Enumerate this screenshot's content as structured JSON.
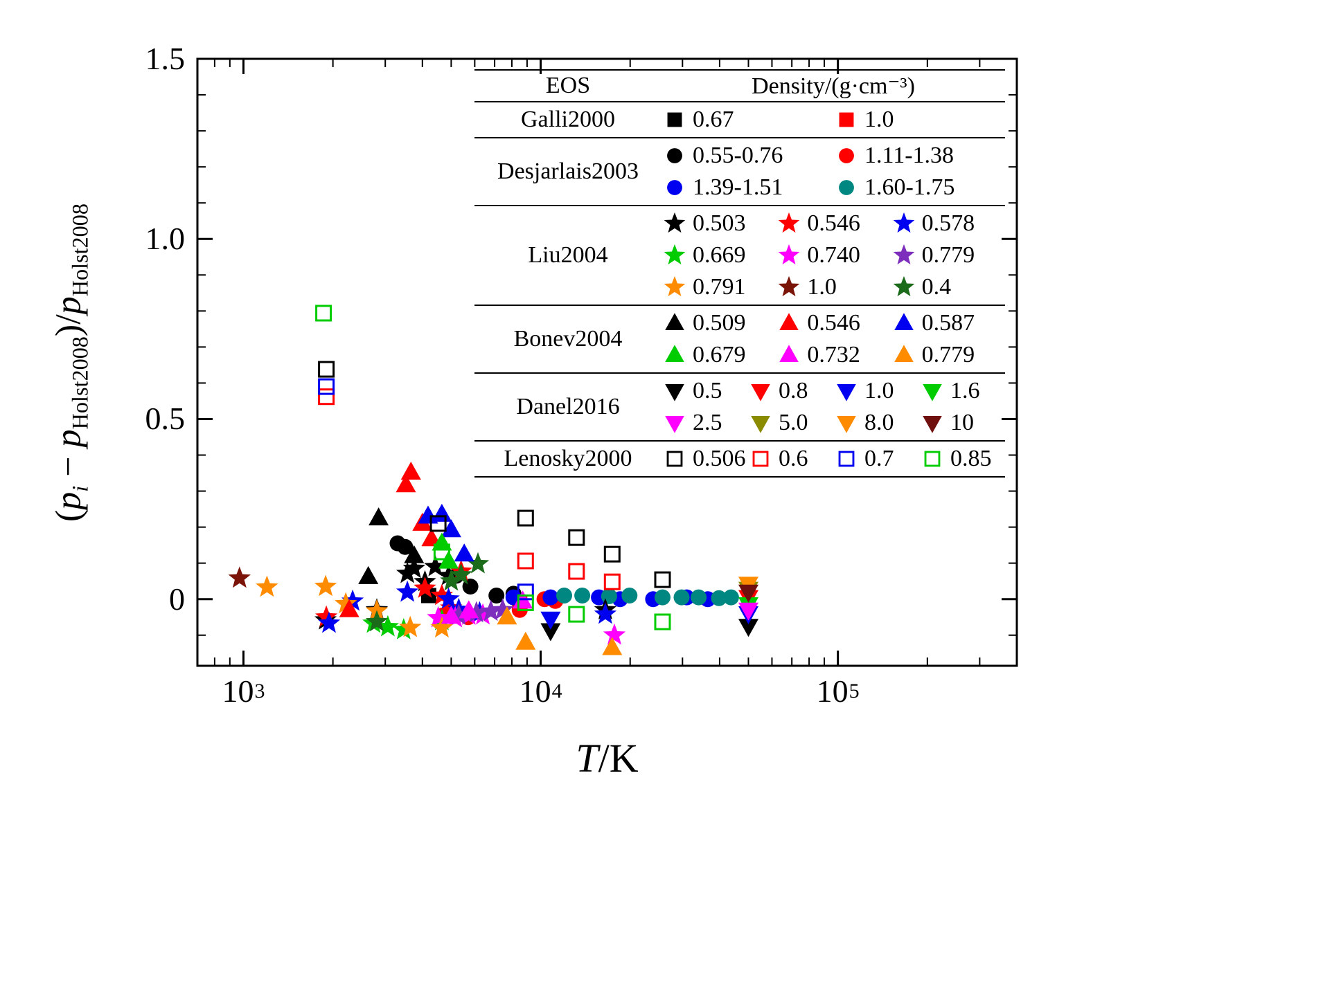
{
  "axes": {
    "x": {
      "label_segments": [
        {
          "t": "T",
          "i": 1
        },
        {
          "t": "/K",
          "i": 0
        }
      ],
      "ticks": [
        {
          "base": "10",
          "exp": "3",
          "value": 1000
        },
        {
          "base": "10",
          "exp": "4",
          "value": 10000
        },
        {
          "base": "10",
          "exp": "5",
          "value": 100000
        }
      ]
    },
    "y": {
      "label_segments": [
        {
          "t": "(",
          "i": 0
        },
        {
          "t": "p",
          "i": 1
        },
        {
          "t": "i",
          "i": 1,
          "sub": 1
        },
        {
          "t": " − ",
          "i": 0
        },
        {
          "t": "p",
          "i": 1
        },
        {
          "t": "Holst2008",
          "i": 0,
          "sub": 1
        },
        {
          "t": ")/",
          "i": 0
        },
        {
          "t": "p",
          "i": 1
        },
        {
          "t": "Holst2008",
          "i": 0,
          "sub": 1
        }
      ],
      "ticks": [
        {
          "label": "0",
          "value": 0
        },
        {
          "label": "0.5",
          "value": 0.5
        },
        {
          "label": "1.0",
          "value": 1.0
        },
        {
          "label": "1.5",
          "value": 1.5
        }
      ]
    }
  },
  "legend": {
    "header": {
      "eos": "EOS",
      "density": "Density/(g·cm⁻³)"
    },
    "groups": [
      {
        "name": "Galli2000",
        "cols": 2,
        "entries": [
          {
            "marker": "square",
            "color": "#000000",
            "label": "0.67"
          },
          {
            "marker": "square",
            "color": "#fe0000",
            "label": "1.0"
          }
        ]
      },
      {
        "name": "Desjarlais2003",
        "cols": 2,
        "entries": [
          {
            "marker": "circle",
            "color": "#000000",
            "label": "0.55-0.76"
          },
          {
            "marker": "circle",
            "color": "#fe0000",
            "label": "1.11-1.38"
          },
          {
            "marker": "circle",
            "color": "#0000f0",
            "label": "1.39-1.51"
          },
          {
            "marker": "circle",
            "color": "#008782",
            "label": "1.60-1.75"
          }
        ]
      },
      {
        "name": "Liu2004",
        "cols": 3,
        "entries": [
          {
            "marker": "star",
            "color": "#000000",
            "label": "0.503"
          },
          {
            "marker": "star",
            "color": "#fe0000",
            "label": "0.546"
          },
          {
            "marker": "star",
            "color": "#0000f0",
            "label": "0.578"
          },
          {
            "marker": "star",
            "color": "#00cc00",
            "label": "0.669"
          },
          {
            "marker": "star",
            "color": "#ff00ff",
            "label": "0.740"
          },
          {
            "marker": "star",
            "color": "#7d2ebd",
            "label": "0.779"
          },
          {
            "marker": "star",
            "color": "#ff8c00",
            "label": "0.791"
          },
          {
            "marker": "star",
            "color": "#7b1408",
            "label": "1.0"
          },
          {
            "marker": "star",
            "color": "#1b6b1b",
            "label": "0.4"
          }
        ]
      },
      {
        "name": "Bonev2004",
        "cols": 3,
        "entries": [
          {
            "marker": "triangle-up",
            "color": "#000000",
            "label": "0.509"
          },
          {
            "marker": "triangle-up",
            "color": "#fe0000",
            "label": "0.546"
          },
          {
            "marker": "triangle-up",
            "color": "#0000f0",
            "label": "0.587"
          },
          {
            "marker": "triangle-up",
            "color": "#00cc00",
            "label": "0.679"
          },
          {
            "marker": "triangle-up",
            "color": "#ff00ff",
            "label": "0.732"
          },
          {
            "marker": "triangle-up",
            "color": "#ff8c00",
            "label": "0.779"
          }
        ]
      },
      {
        "name": "Danel2016",
        "cols": 4,
        "entries": [
          {
            "marker": "triangle-down",
            "color": "#000000",
            "label": "0.5"
          },
          {
            "marker": "triangle-down",
            "color": "#fe0000",
            "label": "0.8"
          },
          {
            "marker": "triangle-down",
            "color": "#0000f0",
            "label": "1.0"
          },
          {
            "marker": "triangle-down",
            "color": "#00cc00",
            "label": "1.6"
          },
          {
            "marker": "triangle-down",
            "color": "#ff00ff",
            "label": "2.5"
          },
          {
            "marker": "triangle-down",
            "color": "#8b8b00",
            "label": "5.0"
          },
          {
            "marker": "triangle-down",
            "color": "#ff8c00",
            "label": "8.0"
          },
          {
            "marker": "triangle-down",
            "color": "#70100e",
            "label": "10"
          }
        ]
      },
      {
        "name": "Lenosky2000",
        "cols": 4,
        "entries": [
          {
            "marker": "square-open",
            "color": "#000000",
            "label": "0.506"
          },
          {
            "marker": "square-open",
            "color": "#fe0000",
            "label": "0.6"
          },
          {
            "marker": "square-open",
            "color": "#0000f0",
            "label": "0.7"
          },
          {
            "marker": "square-open",
            "color": "#00cc00",
            "label": "0.85"
          }
        ]
      }
    ]
  },
  "chart_data": {
    "type": "scatter",
    "xscale": "log",
    "xlabel": "T/K",
    "ylabel": "(p_i − p_Holst2008)/p_Holst2008",
    "xlim": [
      700,
      400000
    ],
    "ylim": [
      -0.185,
      1.5
    ],
    "grid": false,
    "legend_position": "upper right inside",
    "series": [
      {
        "eos": "Galli2000",
        "density": "0.67",
        "marker": "square",
        "color": "#000000",
        "points": [
          [
            4200,
            0.01
          ]
        ]
      },
      {
        "eos": "Galli2000",
        "density": "1.0",
        "marker": "square",
        "color": "#fe0000",
        "points": [
          [
            8500,
            -0.01
          ]
        ]
      },
      {
        "eos": "Desjarlais2003",
        "density": "0.55-0.76",
        "marker": "circle",
        "color": "#000000",
        "points": [
          [
            3300,
            0.155
          ],
          [
            3500,
            0.145
          ],
          [
            5200,
            0.065
          ],
          [
            5800,
            0.035
          ],
          [
            7100,
            0.01
          ],
          [
            8100,
            0.015
          ]
        ]
      },
      {
        "eos": "Desjarlais2003",
        "density": "1.11-1.38",
        "marker": "circle",
        "color": "#fe0000",
        "points": [
          [
            4700,
            -0.045
          ],
          [
            5700,
            -0.05
          ],
          [
            8500,
            -0.03
          ],
          [
            10300,
            0.0
          ],
          [
            11200,
            -0.005
          ]
        ]
      },
      {
        "eos": "Desjarlais2003",
        "density": "1.39-1.51",
        "marker": "circle",
        "color": "#0000f0",
        "points": [
          [
            8100,
            0.005
          ],
          [
            10800,
            0.005
          ],
          [
            15700,
            0.005
          ],
          [
            18500,
            0.0
          ],
          [
            23900,
            0.0
          ],
          [
            31000,
            0.005
          ],
          [
            36500,
            0.0
          ]
        ]
      },
      {
        "eos": "Desjarlais2003",
        "density": "1.60-1.75",
        "marker": "circle",
        "color": "#008782",
        "points": [
          [
            12000,
            0.01
          ],
          [
            13800,
            0.01
          ],
          [
            17000,
            0.008
          ],
          [
            19900,
            0.01
          ],
          [
            25700,
            0.005
          ],
          [
            29800,
            0.005
          ],
          [
            34000,
            0.005
          ],
          [
            39800,
            0.003
          ],
          [
            43700,
            0.005
          ]
        ]
      },
      {
        "eos": "Liu2004",
        "density": "0.503",
        "marker": "star",
        "color": "#000000",
        "points": [
          [
            1890,
            -0.058
          ],
          [
            2810,
            -0.03
          ],
          [
            3560,
            0.071
          ],
          [
            3750,
            0.085
          ],
          [
            4080,
            0.048
          ],
          [
            4420,
            0.09
          ],
          [
            4900,
            0.065
          ],
          [
            16500,
            -0.03
          ]
        ]
      },
      {
        "eos": "Liu2004",
        "density": "0.546",
        "marker": "star",
        "color": "#fe0000",
        "points": [
          [
            1900,
            -0.05
          ],
          [
            4080,
            0.03
          ],
          [
            4650,
            0.01
          ],
          [
            5000,
            -0.025
          ],
          [
            5400,
            0.077
          ]
        ]
      },
      {
        "eos": "Liu2004",
        "density": "0.578",
        "marker": "star",
        "color": "#0000f0",
        "points": [
          [
            1940,
            -0.067
          ],
          [
            2330,
            -0.006
          ],
          [
            3560,
            0.019
          ],
          [
            4900,
            0.0
          ],
          [
            5300,
            -0.029
          ],
          [
            6230,
            -0.038
          ],
          [
            16500,
            -0.042
          ]
        ]
      },
      {
        "eos": "Liu2004",
        "density": "0.669",
        "marker": "star",
        "color": "#00cc00",
        "points": [
          [
            2740,
            -0.067
          ],
          [
            3060,
            -0.077
          ],
          [
            3460,
            -0.085
          ],
          [
            4650,
            -0.06
          ]
        ]
      },
      {
        "eos": "Liu2004",
        "density": "0.740",
        "marker": "star",
        "color": "#ff00ff",
        "points": [
          [
            4520,
            -0.052
          ],
          [
            5160,
            -0.052
          ],
          [
            5730,
            -0.045
          ],
          [
            6390,
            -0.044
          ],
          [
            17700,
            -0.1
          ]
        ]
      },
      {
        "eos": "Liu2004",
        "density": "0.779",
        "marker": "star",
        "color": "#7d2ebd",
        "points": [
          [
            5300,
            -0.045
          ],
          [
            6080,
            -0.038
          ],
          [
            6800,
            -0.034
          ],
          [
            7450,
            -0.03
          ]
        ]
      },
      {
        "eos": "Liu2004",
        "density": "0.791",
        "marker": "star",
        "color": "#ff8c00",
        "points": [
          [
            1200,
            0.033
          ],
          [
            1890,
            0.035
          ],
          [
            2210,
            -0.013
          ],
          [
            2810,
            -0.033
          ],
          [
            3640,
            -0.079
          ],
          [
            4650,
            -0.08
          ]
        ]
      },
      {
        "eos": "Liu2004",
        "density": "1.0",
        "marker": "star",
        "color": "#7b1408",
        "points": [
          [
            970,
            0.058
          ]
        ]
      },
      {
        "eos": "Liu2004",
        "density": "0.4",
        "marker": "star",
        "color": "#1b6b1b",
        "points": [
          [
            2810,
            -0.063
          ],
          [
            5000,
            0.05
          ],
          [
            5400,
            0.067
          ],
          [
            6150,
            0.098
          ]
        ]
      },
      {
        "eos": "Bonev2004",
        "density": "0.509",
        "marker": "triangle-up",
        "color": "#000000",
        "points": [
          [
            2630,
            0.062
          ],
          [
            2850,
            0.225
          ],
          [
            3750,
            0.12
          ]
        ]
      },
      {
        "eos": "Bonev2004",
        "density": "0.546",
        "marker": "triangle-up",
        "color": "#fe0000",
        "points": [
          [
            2270,
            -0.03
          ],
          [
            3520,
            0.317
          ],
          [
            3660,
            0.352
          ],
          [
            4000,
            0.21
          ],
          [
            4290,
            0.167
          ]
        ]
      },
      {
        "eos": "Bonev2004",
        "density": "0.587",
        "marker": "triangle-up",
        "color": "#0000f0",
        "points": [
          [
            4180,
            0.23
          ],
          [
            4650,
            0.235
          ],
          [
            5000,
            0.192
          ],
          [
            5530,
            0.125
          ]
        ]
      },
      {
        "eos": "Bonev2004",
        "density": "0.679",
        "marker": "triangle-up",
        "color": "#00cc00",
        "points": [
          [
            4650,
            0.155
          ],
          [
            4900,
            0.105
          ]
        ]
      },
      {
        "eos": "Bonev2004",
        "density": "0.732",
        "marker": "triangle-up",
        "color": "#ff00ff",
        "points": [
          [
            5000,
            -0.048
          ],
          [
            5730,
            -0.033
          ],
          [
            8700,
            -0.006
          ]
        ]
      },
      {
        "eos": "Bonev2004",
        "density": "0.779",
        "marker": "triangle-up",
        "color": "#ff8c00",
        "points": [
          [
            7700,
            -0.05
          ],
          [
            8900,
            -0.12
          ],
          [
            17400,
            -0.135
          ]
        ]
      },
      {
        "eos": "Danel2016",
        "density": "0.5",
        "marker": "triangle-down",
        "color": "#000000",
        "points": [
          [
            10800,
            -0.087
          ],
          [
            50000,
            -0.075
          ]
        ]
      },
      {
        "eos": "Danel2016",
        "density": "0.8",
        "marker": "triangle-down",
        "color": "#fe0000",
        "points": [
          [
            50000,
            0.005
          ]
        ]
      },
      {
        "eos": "Danel2016",
        "density": "1.0",
        "marker": "triangle-down",
        "color": "#0000f0",
        "points": [
          [
            10800,
            -0.055
          ],
          [
            50000,
            -0.04
          ]
        ]
      },
      {
        "eos": "Danel2016",
        "density": "1.6",
        "marker": "triangle-down",
        "color": "#00cc00",
        "points": [
          [
            50000,
            -0.015
          ]
        ]
      },
      {
        "eos": "Danel2016",
        "density": "2.5",
        "marker": "triangle-down",
        "color": "#ff00ff",
        "points": [
          [
            50000,
            -0.03
          ]
        ]
      },
      {
        "eos": "Danel2016",
        "density": "5.0",
        "marker": "triangle-down",
        "color": "#8b8b00",
        "points": [
          [
            50000,
            0.028
          ]
        ]
      },
      {
        "eos": "Danel2016",
        "density": "8.0",
        "marker": "triangle-down",
        "color": "#ff8c00",
        "points": [
          [
            50000,
            0.042
          ]
        ]
      },
      {
        "eos": "Danel2016",
        "density": "10",
        "marker": "triangle-down",
        "color": "#70100e",
        "points": [
          [
            50000,
            0.02
          ]
        ]
      },
      {
        "eos": "Lenosky2000",
        "density": "0.506",
        "marker": "square-open",
        "color": "#000000",
        "points": [
          [
            1900,
            0.638
          ],
          [
            4520,
            0.21
          ],
          [
            8900,
            0.225
          ],
          [
            13200,
            0.171
          ],
          [
            17400,
            0.125
          ],
          [
            25700,
            0.054
          ]
        ]
      },
      {
        "eos": "Lenosky2000",
        "density": "0.6",
        "marker": "square-open",
        "color": "#fe0000",
        "points": [
          [
            1900,
            0.562
          ],
          [
            8900,
            0.106
          ],
          [
            13200,
            0.077
          ],
          [
            17400,
            0.048
          ]
        ]
      },
      {
        "eos": "Lenosky2000",
        "density": "0.7",
        "marker": "square-open",
        "color": "#0000f0",
        "points": [
          [
            1900,
            0.59
          ],
          [
            8900,
            0.02
          ]
        ]
      },
      {
        "eos": "Lenosky2000",
        "density": "0.85",
        "marker": "square-open",
        "color": "#00cc00",
        "points": [
          [
            1860,
            0.794
          ],
          [
            4650,
            0.131
          ],
          [
            8900,
            -0.01
          ],
          [
            13200,
            -0.042
          ],
          [
            25700,
            -0.063
          ]
        ]
      }
    ]
  }
}
